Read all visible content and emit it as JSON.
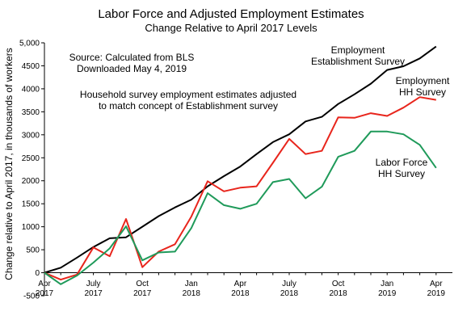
{
  "chart_data": {
    "type": "line",
    "title": "Labor Force and Adjusted Employment Estimates",
    "subtitle": "Change Relative to April 2017 Levels",
    "ylabel": "Change relative to April 2017, in thousands of workers",
    "ylim": [
      -500,
      5000
    ],
    "yticks": [
      -500,
      0,
      500,
      1000,
      1500,
      2000,
      2500,
      3000,
      3500,
      4000,
      4500,
      5000
    ],
    "ytick_labels": [
      "-500",
      "0",
      "500",
      "1000",
      "1500",
      "2000",
      "2500",
      "3000",
      "3500",
      "4000",
      "4500",
      "5,000"
    ],
    "xlim": [
      0,
      25
    ],
    "xticks": [
      {
        "pos": 0,
        "top": "Apr",
        "bottom": "2017"
      },
      {
        "pos": 3,
        "top": "July",
        "bottom": "2017"
      },
      {
        "pos": 6,
        "top": "Oct",
        "bottom": "2017"
      },
      {
        "pos": 9,
        "top": "Jan",
        "bottom": "2018"
      },
      {
        "pos": 12,
        "top": "Apr",
        "bottom": "2018"
      },
      {
        "pos": 15,
        "top": "July",
        "bottom": "2018"
      },
      {
        "pos": 18,
        "top": "Oct",
        "bottom": "2018"
      },
      {
        "pos": 21,
        "top": "Jan",
        "bottom": "2019"
      },
      {
        "pos": 24,
        "top": "Apr",
        "bottom": "2019"
      }
    ],
    "x": [
      "Apr 2017",
      "May 2017",
      "Jun 2017",
      "Jul 2017",
      "Aug 2017",
      "Sep 2017",
      "Oct 2017",
      "Nov 2017",
      "Dec 2017",
      "Jan 2018",
      "Feb 2018",
      "Mar 2018",
      "Apr 2018",
      "May 2018",
      "Jun 2018",
      "Jul 2018",
      "Aug 2018",
      "Sep 2018",
      "Oct 2018",
      "Nov 2018",
      "Dec 2018",
      "Jan 2019",
      "Feb 2019",
      "Mar 2019",
      "Apr 2019"
    ],
    "series": [
      {
        "name": "Employment Establishment Survey",
        "color": "#000000",
        "values": [
          0,
          110,
          330,
          560,
          750,
          770,
          1000,
          1230,
          1420,
          1590,
          1880,
          2100,
          2310,
          2580,
          2840,
          3010,
          3290,
          3390,
          3670,
          3880,
          4110,
          4410,
          4490,
          4660,
          4920
        ]
      },
      {
        "name": "Employment HH Survey",
        "color": "#e8251c",
        "values": [
          0,
          -150,
          -40,
          550,
          360,
          1170,
          120,
          460,
          620,
          1220,
          1990,
          1770,
          1850,
          1880,
          2390,
          2910,
          2580,
          2650,
          3380,
          3370,
          3470,
          3410,
          3590,
          3820,
          3760
        ]
      },
      {
        "name": "Labor Force HH Survey",
        "color": "#1f9a5a",
        "values": [
          0,
          -250,
          -60,
          220,
          530,
          1010,
          270,
          440,
          460,
          970,
          1730,
          1470,
          1390,
          1500,
          1970,
          2040,
          1620,
          1870,
          2520,
          2650,
          3070,
          3070,
          3010,
          2780,
          2280
        ]
      }
    ],
    "annotations": [
      {
        "id": "source",
        "lines": [
          "Source:  Calculated from BLS",
          "Downloaded May 4, 2019"
        ]
      },
      {
        "id": "note",
        "lines": [
          "Household survey employment estimates adjusted",
          "to match concept of Establishment survey"
        ]
      },
      {
        "id": "label-establishment",
        "lines": [
          "Employment",
          "Establishment Survey"
        ]
      },
      {
        "id": "label-hh-employment",
        "lines": [
          "Employment",
          "HH Survey"
        ]
      },
      {
        "id": "label-labor-force",
        "lines": [
          "Labor Force",
          "HH Survey"
        ]
      }
    ],
    "grid": false,
    "legend": "inline labels"
  }
}
